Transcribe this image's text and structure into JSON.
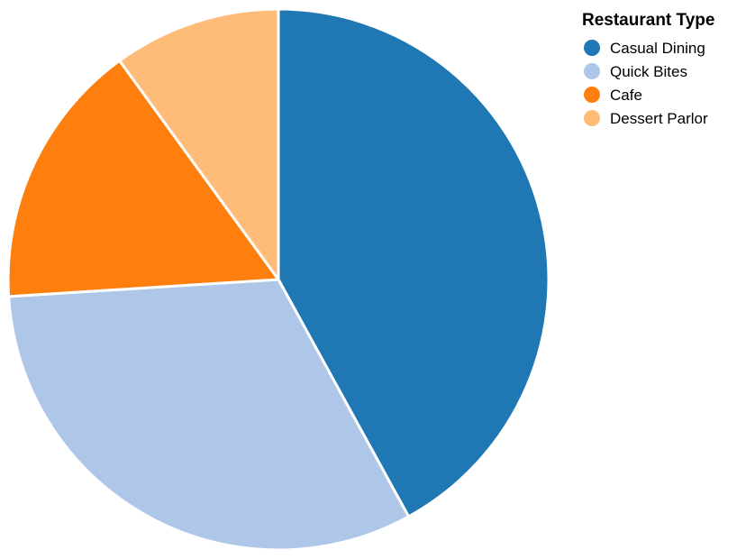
{
  "chart_data": {
    "type": "pie",
    "legend_title": "Restaurant Type",
    "legend_position": "top-right",
    "categories": [
      "Casual Dining",
      "Quick Bites",
      "Cafe",
      "Dessert Parlor"
    ],
    "values": [
      42,
      32,
      16,
      10
    ],
    "colors": [
      "#1f77b4",
      "#aec7e8",
      "#ff7f0e",
      "#ffbb78"
    ]
  }
}
